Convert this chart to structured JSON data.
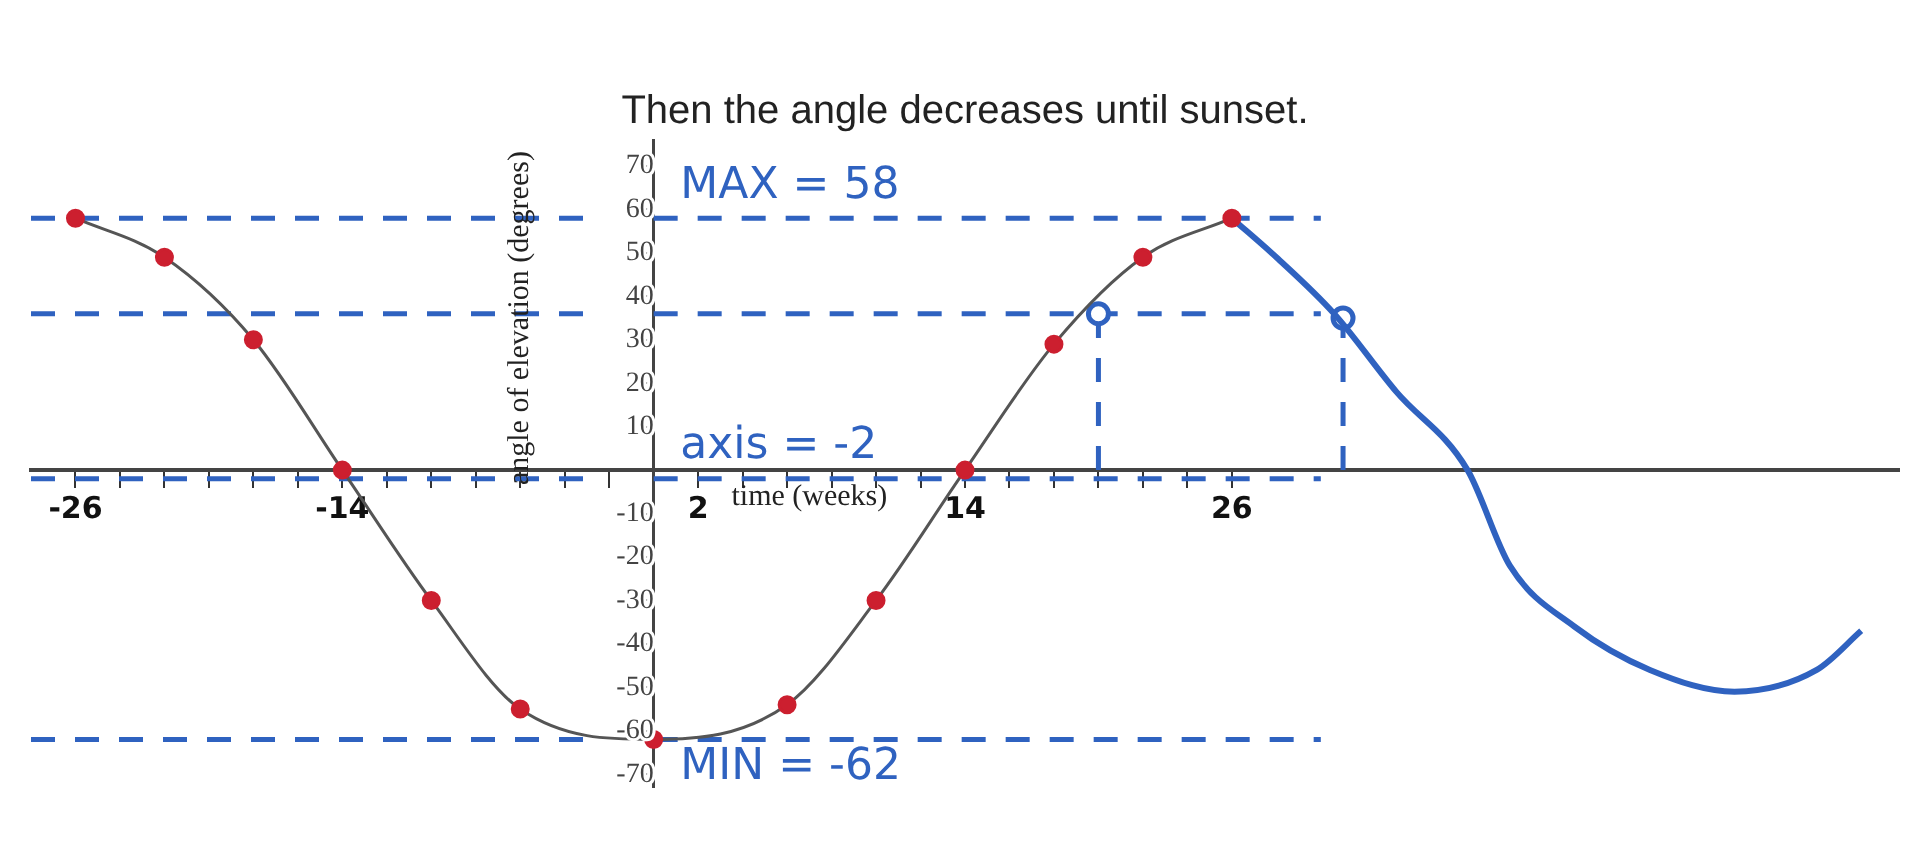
{
  "chart_data": {
    "type": "line",
    "title": "Then the angle decreases until sunset.",
    "xlabel": "time (weeks)",
    "ylabel": "angle of elevation (degrees)",
    "xlim": [
      -28,
      56
    ],
    "ylim": [
      -73,
      76
    ],
    "xticks": [
      {
        "value": -26,
        "label": "-26"
      },
      {
        "value": -24,
        "label": null
      },
      {
        "value": -22,
        "label": null
      },
      {
        "value": -20,
        "label": null
      },
      {
        "value": -18,
        "label": null
      },
      {
        "value": -16,
        "label": null
      },
      {
        "value": -14,
        "label": "-14"
      },
      {
        "value": -12,
        "label": null
      },
      {
        "value": -10,
        "label": null
      },
      {
        "value": -8,
        "label": null
      },
      {
        "value": -6,
        "label": null
      },
      {
        "value": -4,
        "label": null
      },
      {
        "value": -2,
        "label": null
      },
      {
        "value": 2,
        "label": "2"
      },
      {
        "value": 4,
        "label": null
      },
      {
        "value": 6,
        "label": null
      },
      {
        "value": 8,
        "label": null
      },
      {
        "value": 10,
        "label": null
      },
      {
        "value": 12,
        "label": null
      },
      {
        "value": 14,
        "label": "14"
      },
      {
        "value": 16,
        "label": null
      },
      {
        "value": 18,
        "label": null
      },
      {
        "value": 20,
        "label": null
      },
      {
        "value": 22,
        "label": null
      },
      {
        "value": 24,
        "label": null
      },
      {
        "value": 26,
        "label": "26"
      }
    ],
    "yticks": [
      -70,
      -60,
      -50,
      -40,
      -30,
      -20,
      -10,
      10,
      20,
      30,
      40,
      50,
      60,
      70
    ],
    "grid": false,
    "legend": false,
    "series": [
      {
        "color": "#555555",
        "colors": [
          "#cc1f2f",
          "#cc1f2f",
          "#cc1f2f",
          "#cc1f2f",
          "#cc1f2f",
          "#cc1f2f",
          "#cc1f2f",
          "#cc1f2f",
          "#cc1f2f",
          "#cc1f2f",
          "#cc1f2f",
          "#cc1f2f",
          "#cc1f2f"
        ],
        "marker": "circle",
        "x": [
          -26,
          -22,
          -18,
          -14,
          -10,
          -6,
          0,
          6,
          10,
          14,
          18,
          22,
          26
        ],
        "values": [
          58,
          49,
          30,
          0,
          -30,
          -55,
          -62,
          -54,
          -30,
          0,
          29,
          49,
          58
        ]
      },
      {
        "type": "line",
        "color": "#2f62c0",
        "marker": "none",
        "x": [
          26,
          28,
          30.6,
          33.4,
          36.6,
          38.5,
          41.4,
          44.8,
          48.6,
          52.3,
          54.3
        ],
        "values": [
          58,
          49,
          36,
          18,
          0,
          -22,
          -36,
          -46,
          -51,
          -46,
          -37
        ]
      },
      {
        "type": "scatter",
        "color": "#2f62c0",
        "marker": "circle",
        "x": [
          20,
          31
        ],
        "values": [
          36,
          35
        ]
      }
    ],
    "ref_lines": [
      {
        "axis": "y",
        "value": 58,
        "label": "MAX = 58",
        "color": "#2f62c0",
        "line_style": "dashed"
      },
      {
        "axis": "y",
        "value": -62,
        "label": "MIN = -62",
        "color": "#2f62c0",
        "line_style": "dashed"
      },
      {
        "axis": "y",
        "value": -2,
        "label": "axis = -2",
        "color": "#2f62c0",
        "line_style": "dashed"
      },
      {
        "axis": "y",
        "value": 36,
        "label": null,
        "color": "#2f62c0",
        "line_style": "dashed"
      },
      {
        "axis": "x",
        "value": 20,
        "label": null,
        "color": "#2f62c0",
        "line_style": "dashed"
      },
      {
        "axis": "x",
        "value": 31,
        "label": null,
        "color": "#2f62c0",
        "line_style": "dashed"
      }
    ]
  }
}
